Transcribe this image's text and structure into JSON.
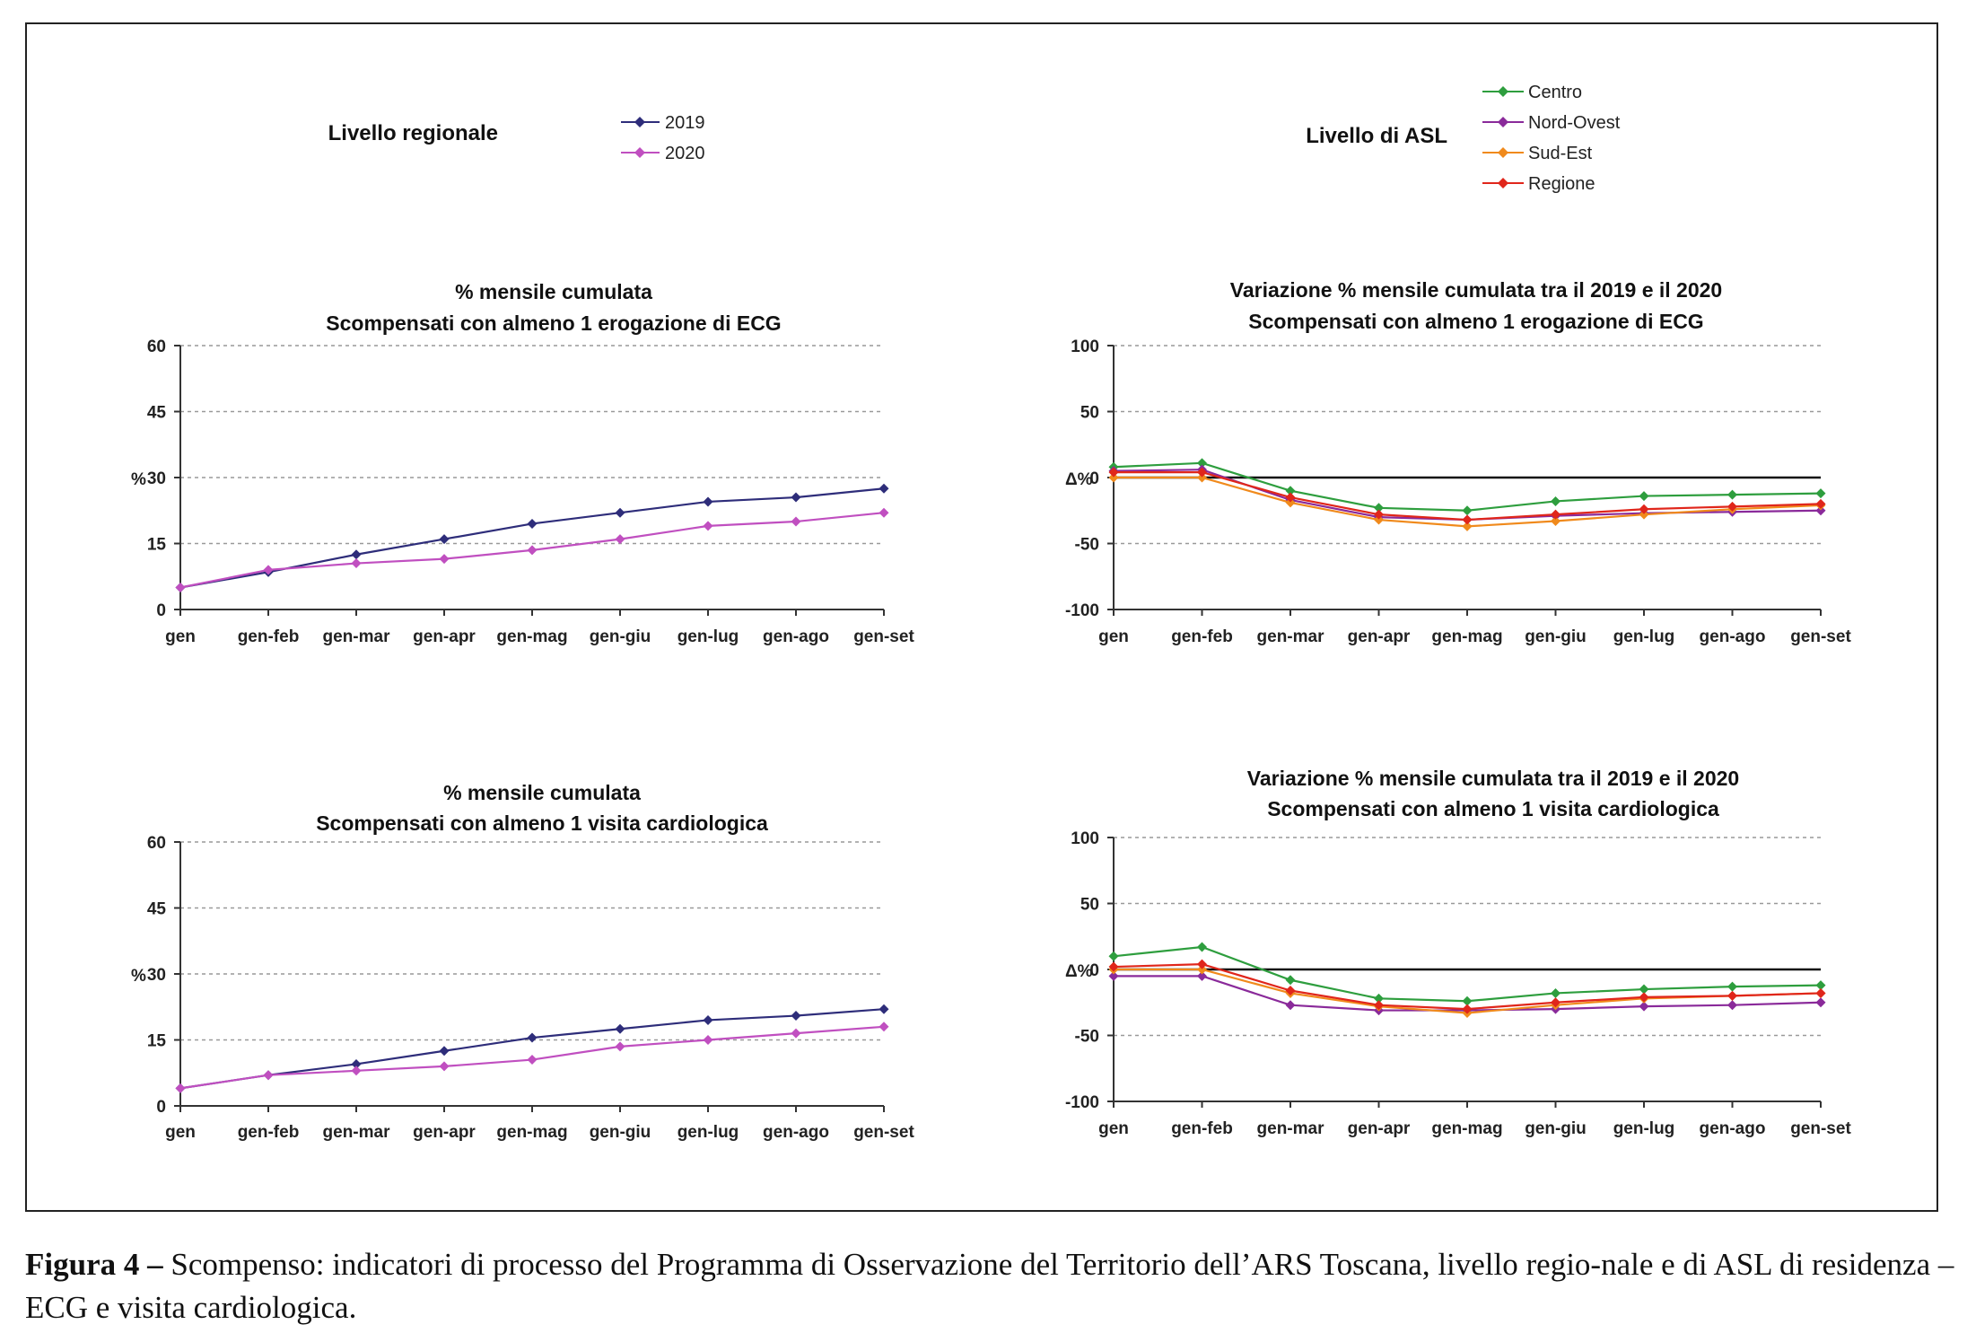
{
  "legends": {
    "regional": {
      "title": "Livello regionale",
      "entries": [
        "2019",
        "2020"
      ]
    },
    "asl": {
      "title": "Livello di ASL",
      "entries": [
        "Centro",
        "Nord-Ovest",
        "Sud-Est",
        "Regione"
      ]
    }
  },
  "colors": {
    "2019": "#2e2d7a",
    "2020": "#c04fc0",
    "Centro": "#2e9e3e",
    "Nord-Ovest": "#8a2a9a",
    "Sud-Est": "#f08a1c",
    "Regione": "#e0261b",
    "zero_line": "#111111",
    "grid": "#999999"
  },
  "chart_data": [
    {
      "type": "line",
      "title": [
        "% mensile cumulata",
        "Scompensati con almeno 1 erogazione di ECG"
      ],
      "ylabel": "%",
      "categories": [
        "gen",
        "gen-feb",
        "gen-mar",
        "gen-apr",
        "gen-mag",
        "gen-giu",
        "gen-lug",
        "gen-ago",
        "gen-set"
      ],
      "yticks": [
        0,
        15,
        30,
        45,
        60
      ],
      "ylim": [
        0,
        60
      ],
      "grid": true,
      "series": [
        {
          "name": "2019",
          "values": [
            5,
            8.5,
            12.5,
            16,
            19.5,
            22,
            24.5,
            25.5,
            27.5
          ]
        },
        {
          "name": "2020",
          "values": [
            5,
            9,
            10.5,
            11.5,
            13.5,
            16,
            19,
            20,
            22
          ]
        }
      ]
    },
    {
      "type": "line",
      "title": [
        "Variazione % mensile cumulata tra il 2019 e il 2020",
        "Scompensati con almeno 1 erogazione di ECG"
      ],
      "ylabel": "Δ%",
      "categories": [
        "gen",
        "gen-feb",
        "gen-mar",
        "gen-apr",
        "gen-mag",
        "gen-giu",
        "gen-lug",
        "gen-ago",
        "gen-set"
      ],
      "yticks": [
        -100,
        -50,
        0,
        50,
        100
      ],
      "ylim": [
        -100,
        100
      ],
      "grid": true,
      "series": [
        {
          "name": "Centro",
          "values": [
            8,
            11,
            -10,
            -23,
            -25,
            -18,
            -14,
            -13,
            -12
          ]
        },
        {
          "name": "Nord-Ovest",
          "values": [
            5,
            6,
            -17,
            -30,
            -32,
            -29,
            -27,
            -26,
            -25
          ]
        },
        {
          "name": "Sud-Est",
          "values": [
            0,
            0,
            -19,
            -32,
            -37,
            -33,
            -28,
            -24,
            -21
          ]
        },
        {
          "name": "Regione",
          "values": [
            4,
            4,
            -15,
            -28,
            -32,
            -28,
            -24,
            -22,
            -20
          ]
        }
      ]
    },
    {
      "type": "line",
      "title": [
        "% mensile cumulata",
        "Scompensati con almeno 1 visita cardiologica"
      ],
      "ylabel": "%",
      "categories": [
        "gen",
        "gen-feb",
        "gen-mar",
        "gen-apr",
        "gen-mag",
        "gen-giu",
        "gen-lug",
        "gen-ago",
        "gen-set"
      ],
      "yticks": [
        0,
        15,
        30,
        45,
        60
      ],
      "ylim": [
        0,
        60
      ],
      "grid": true,
      "series": [
        {
          "name": "2019",
          "values": [
            4,
            7,
            9.5,
            12.5,
            15.5,
            17.5,
            19.5,
            20.5,
            22
          ]
        },
        {
          "name": "2020",
          "values": [
            4,
            7,
            8,
            9,
            10.5,
            13.5,
            15,
            16.5,
            18
          ]
        }
      ]
    },
    {
      "type": "line",
      "title": [
        "Variazione % mensile cumulata tra il 2019 e il 2020",
        "Scompensati con almeno 1 visita cardiologica"
      ],
      "ylabel": "Δ%",
      "categories": [
        "gen",
        "gen-feb",
        "gen-mar",
        "gen-apr",
        "gen-mag",
        "gen-giu",
        "gen-lug",
        "gen-ago",
        "gen-set"
      ],
      "yticks": [
        -100,
        -50,
        0,
        50,
        100
      ],
      "ylim": [
        -100,
        100
      ],
      "grid": true,
      "series": [
        {
          "name": "Centro",
          "values": [
            10,
            17,
            -8,
            -22,
            -24,
            -18,
            -15,
            -13,
            -12
          ]
        },
        {
          "name": "Nord-Ovest",
          "values": [
            -5,
            -5,
            -27,
            -31,
            -31,
            -30,
            -28,
            -27,
            -25
          ]
        },
        {
          "name": "Sud-Est",
          "values": [
            0,
            0,
            -18,
            -28,
            -33,
            -27,
            -22,
            -20,
            -18
          ]
        },
        {
          "name": "Regione",
          "values": [
            2,
            4,
            -16,
            -27,
            -30,
            -25,
            -21,
            -20,
            -18
          ]
        }
      ]
    }
  ],
  "caption": {
    "label": "Figura 4 –",
    "text": " Scompenso: indicatori di processo del Programma di Osservazione del Territorio dell’ARS Toscana, livello regio-nale e di ASL di residenza – ECG e visita cardiologica."
  }
}
